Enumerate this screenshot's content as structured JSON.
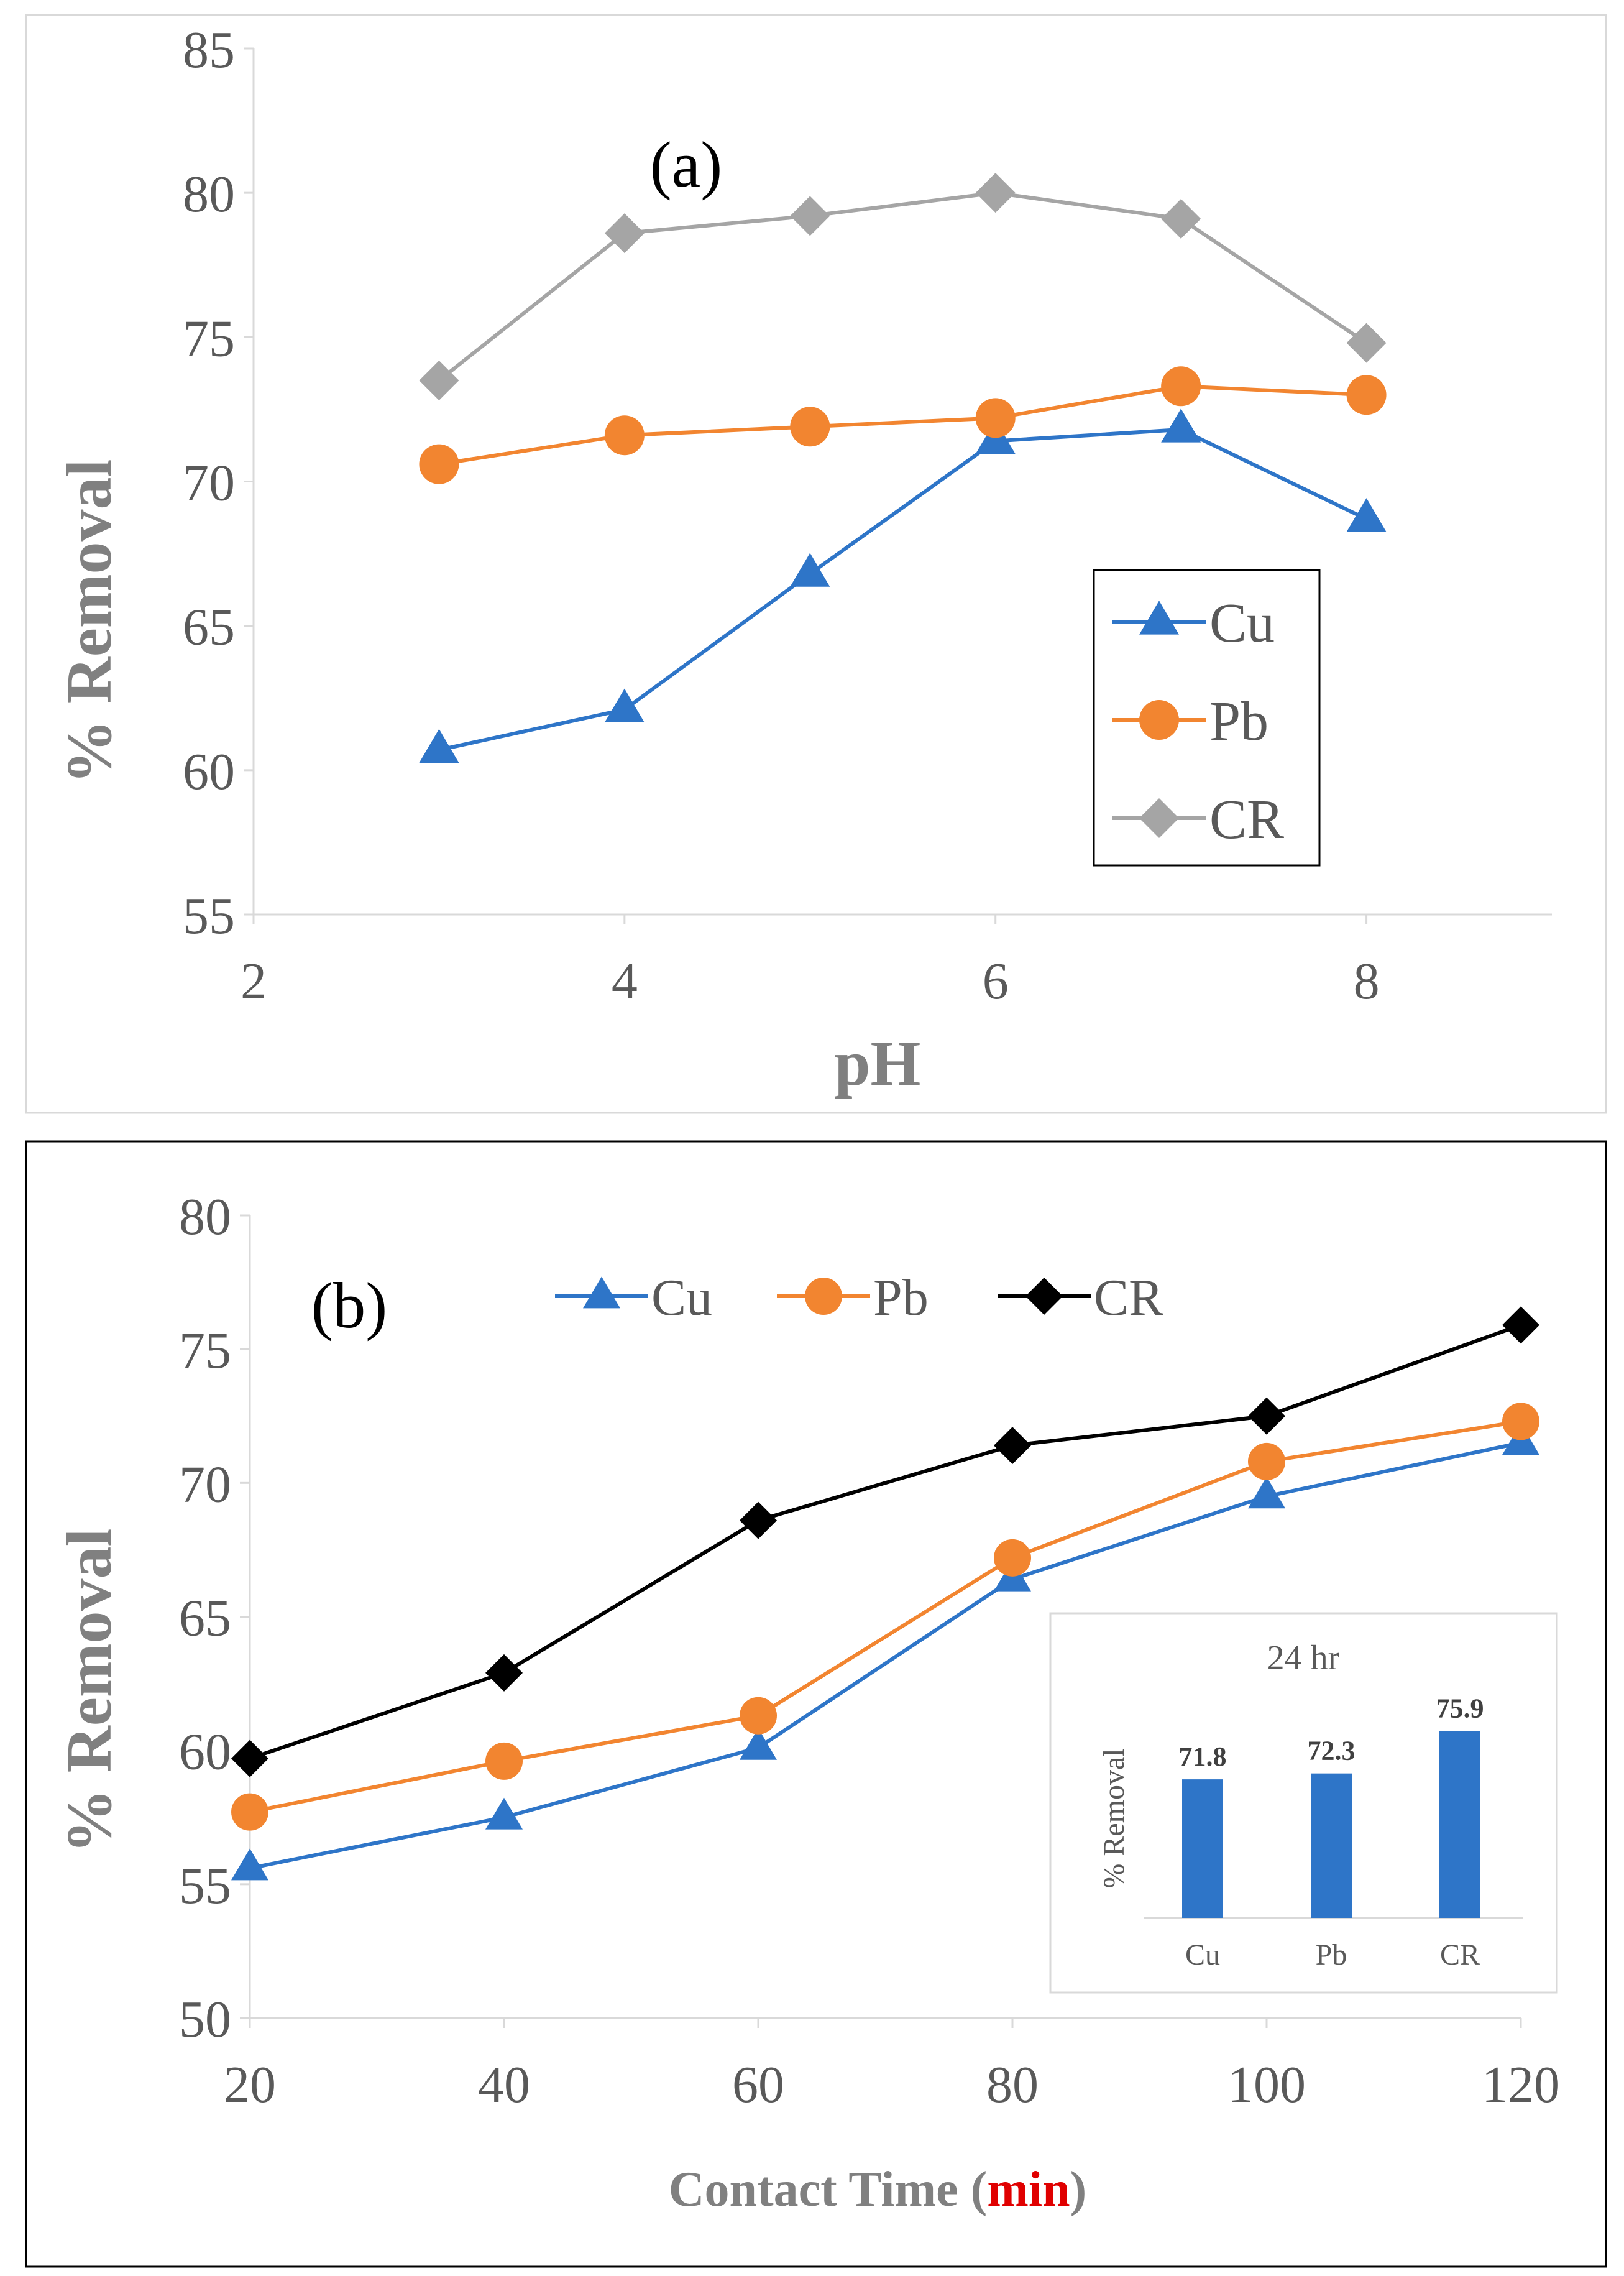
{
  "chart_data": [
    {
      "type": "line",
      "panel_label": "(a)",
      "xlabel": "pH",
      "ylabel": "% Removal",
      "xlim": [
        2,
        9
      ],
      "ylim": [
        55,
        85
      ],
      "x_ticks": [
        2,
        4,
        6,
        8
      ],
      "y_ticks": [
        55,
        60,
        65,
        70,
        75,
        80,
        85
      ],
      "legend_position": "center-right",
      "series": [
        {
          "name": "Cu",
          "marker": "triangle",
          "color": "#2e75c8",
          "x": [
            3,
            4,
            5,
            6,
            7,
            8
          ],
          "y": [
            60.7,
            62.1,
            66.8,
            71.4,
            71.8,
            68.7
          ]
        },
        {
          "name": "Pb",
          "marker": "circle",
          "color": "#f28530",
          "x": [
            3,
            4,
            5,
            6,
            7,
            8
          ],
          "y": [
            70.6,
            71.6,
            71.9,
            72.2,
            73.3,
            73.0
          ]
        },
        {
          "name": "CR",
          "marker": "diamond",
          "color": "#a5a5a5",
          "x": [
            3,
            4,
            5,
            6,
            7,
            8
          ],
          "y": [
            73.5,
            78.6,
            79.2,
            80.0,
            79.1,
            74.8
          ]
        }
      ]
    },
    {
      "type": "line",
      "panel_label": "(b)",
      "xlabel_main": "Contact Time (",
      "xlabel_unit": "min",
      "xlabel_close": ")",
      "ylabel": "% Removal",
      "xlim": [
        20,
        120
      ],
      "ylim": [
        50,
        80
      ],
      "x_ticks": [
        20,
        40,
        60,
        80,
        100,
        120
      ],
      "y_ticks": [
        50,
        55,
        60,
        65,
        70,
        75,
        80
      ],
      "legend_position": "top",
      "series": [
        {
          "name": "Cu",
          "marker": "triangle",
          "color": "#2e75c8",
          "x": [
            20,
            40,
            60,
            80,
            100,
            120
          ],
          "y": [
            55.6,
            57.5,
            60.1,
            66.4,
            69.5,
            71.5
          ]
        },
        {
          "name": "Pb",
          "marker": "circle",
          "color": "#f28530",
          "x": [
            20,
            40,
            60,
            80,
            100,
            120
          ],
          "y": [
            57.7,
            59.6,
            61.3,
            67.2,
            70.8,
            72.3
          ]
        },
        {
          "name": "CR",
          "marker": "diamond",
          "color": "#000000",
          "x": [
            20,
            40,
            60,
            80,
            100,
            120
          ],
          "y": [
            59.7,
            62.9,
            68.6,
            71.4,
            72.5,
            75.9
          ]
        }
      ]
    },
    {
      "type": "bar",
      "title": "24 hr",
      "ylabel": "% Removal",
      "categories": [
        "Cu",
        "Pb",
        "CR"
      ],
      "values": [
        71.8,
        72.3,
        75.9
      ],
      "value_labels": [
        "71.8",
        "72.3",
        "75.9"
      ],
      "color": "#2e75c8"
    }
  ]
}
